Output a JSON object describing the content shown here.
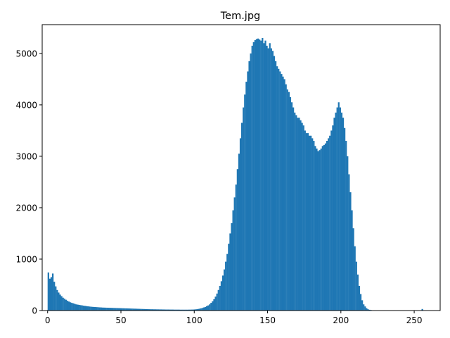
{
  "chart_data": {
    "type": "bar",
    "title": "Tem.jpg",
    "xlabel": "",
    "ylabel": "",
    "xlim": [
      -3.7,
      267.7
    ],
    "ylim": [
      0,
      5560
    ],
    "xticks": [
      0,
      50,
      100,
      150,
      200,
      250
    ],
    "yticks": [
      0,
      1000,
      2000,
      3000,
      4000,
      5000
    ],
    "grid": false,
    "bar_color": "#1f77b4",
    "bins": {
      "start": 0,
      "width": 1,
      "count": 256
    },
    "values": [
      740,
      620,
      650,
      720,
      560,
      470,
      400,
      350,
      310,
      280,
      250,
      230,
      210,
      190,
      175,
      160,
      150,
      140,
      130,
      120,
      115,
      110,
      105,
      100,
      95,
      90,
      86,
      82,
      78,
      75,
      72,
      70,
      68,
      66,
      64,
      62,
      60,
      58,
      57,
      56,
      55,
      54,
      53,
      52,
      51,
      50,
      49,
      48,
      47,
      46,
      45,
      44,
      43,
      42,
      41,
      40,
      39,
      38,
      37,
      36,
      35,
      34,
      33,
      32,
      31,
      30,
      29,
      28,
      27,
      26,
      25,
      25,
      24,
      24,
      23,
      23,
      22,
      22,
      21,
      21,
      20,
      20,
      20,
      19,
      19,
      19,
      18,
      18,
      18,
      18,
      17,
      17,
      17,
      17,
      17,
      17,
      18,
      18,
      19,
      20,
      22,
      25,
      30,
      35,
      42,
      50,
      60,
      70,
      85,
      100,
      120,
      150,
      180,
      220,
      270,
      330,
      400,
      480,
      570,
      680,
      800,
      950,
      1100,
      1300,
      1500,
      1700,
      1950,
      2200,
      2450,
      2750,
      3050,
      3350,
      3650,
      3950,
      4200,
      4450,
      4650,
      4850,
      5000,
      5150,
      5220,
      5260,
      5280,
      5290,
      5270,
      5250,
      5300,
      5200,
      5250,
      5150,
      5100,
      5200,
      5100,
      5050,
      4950,
      4850,
      4750,
      4700,
      4650,
      4600,
      4550,
      4500,
      4400,
      4300,
      4250,
      4150,
      4050,
      3950,
      3850,
      3800,
      3750,
      3750,
      3700,
      3650,
      3600,
      3500,
      3450,
      3450,
      3400,
      3400,
      3350,
      3300,
      3200,
      3150,
      3100,
      3120,
      3150,
      3200,
      3220,
      3250,
      3300,
      3350,
      3400,
      3500,
      3600,
      3750,
      3850,
      3950,
      4050,
      3950,
      3850,
      3750,
      3550,
      3300,
      3000,
      2650,
      2300,
      1950,
      1600,
      1250,
      950,
      700,
      480,
      320,
      200,
      120,
      80,
      45,
      25,
      15,
      10,
      6,
      5,
      4,
      3,
      3,
      3,
      2,
      2,
      2,
      2,
      2,
      2,
      2,
      2,
      2,
      2,
      2,
      2,
      2,
      2,
      2,
      2,
      2,
      2,
      2,
      2,
      2,
      2,
      2,
      2,
      2,
      2,
      2,
      2,
      30
    ]
  }
}
